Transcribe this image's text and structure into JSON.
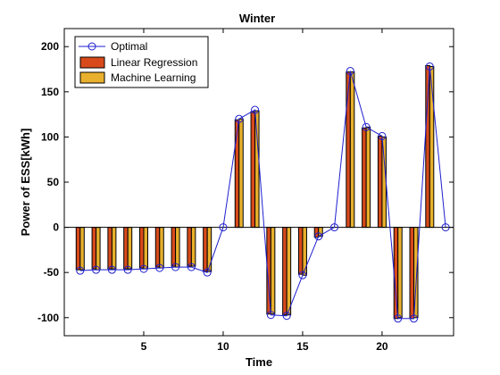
{
  "chart_data": {
    "type": "bar",
    "title": "Winter",
    "xlabel": "Time",
    "ylabel": "Power of ESS[kWh]",
    "xlim": [
      0,
      24.5
    ],
    "ylim": [
      -120,
      220
    ],
    "xticks": [
      5,
      10,
      15,
      20
    ],
    "yticks": [
      -100,
      -50,
      0,
      50,
      100,
      150,
      200
    ],
    "grid": false,
    "legend_position": "top-left",
    "x": [
      1,
      2,
      3,
      4,
      5,
      6,
      7,
      8,
      9,
      10,
      11,
      12,
      13,
      14,
      15,
      16,
      17,
      18,
      19,
      20,
      21,
      22,
      23,
      24
    ],
    "series": [
      {
        "name": "Optimal",
        "style": "line-circle",
        "color": "#1f1fd0",
        "values": [
          -48,
          -47,
          -47,
          -47,
          -46,
          -45,
          -44,
          -44,
          -50,
          0,
          120,
          130,
          -97,
          -98,
          -53,
          -10,
          0,
          173,
          111,
          101,
          -101,
          -101,
          178,
          0
        ]
      },
      {
        "name": "Linear Regression",
        "style": "bar",
        "color": "#d84a1b",
        "values": [
          -47,
          -46,
          -46,
          -46,
          -45,
          -44,
          -43,
          -43,
          -49,
          0,
          119,
          128,
          -96,
          -97,
          -52,
          -11,
          0,
          172,
          110,
          101,
          -101,
          -101,
          179,
          0
        ]
      },
      {
        "name": "Machine Learning",
        "style": "bar",
        "color": "#e8b02c",
        "values": [
          -47,
          -47,
          -46,
          -46,
          -46,
          -45,
          -44,
          -43,
          -49,
          0,
          120,
          129,
          -96,
          -97,
          -53,
          -10,
          0,
          172,
          111,
          100,
          -100,
          -100,
          178,
          0
        ]
      }
    ]
  }
}
